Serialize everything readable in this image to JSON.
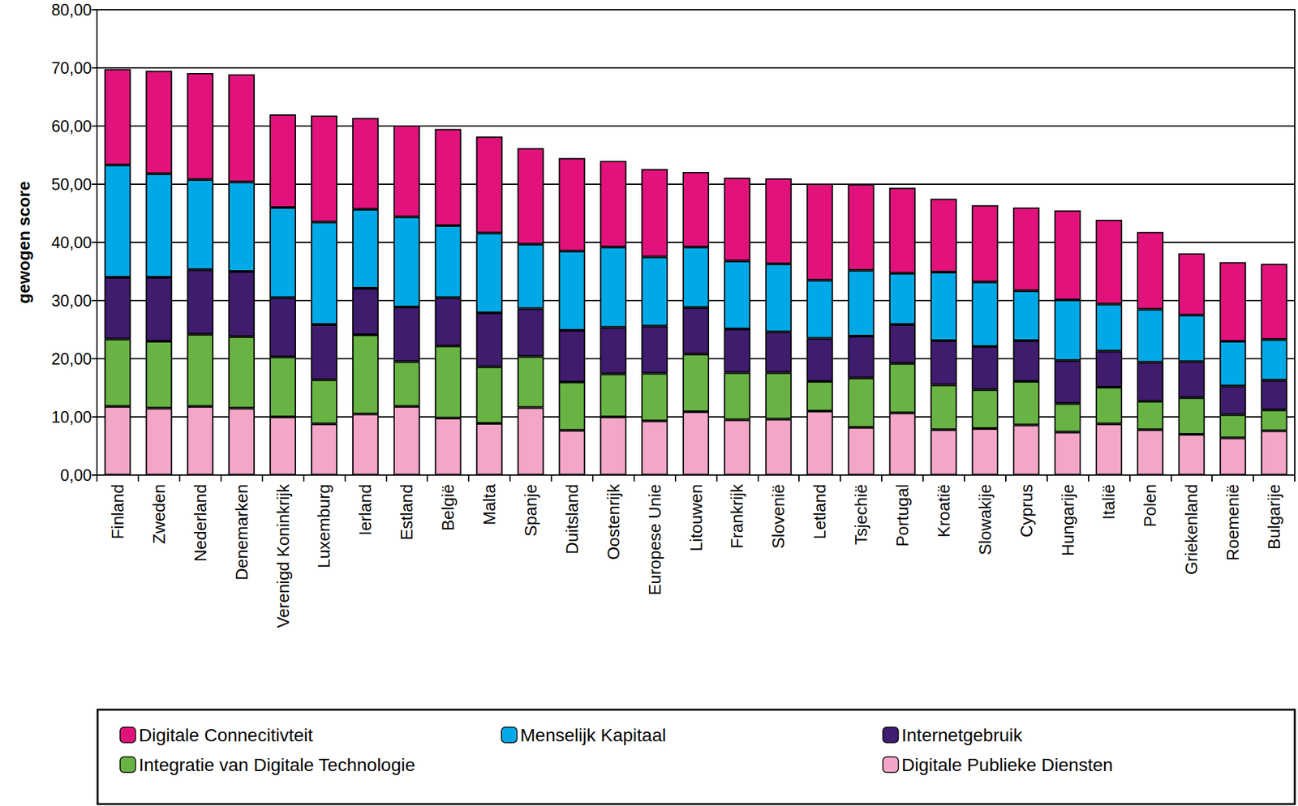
{
  "chart_data": {
    "type": "bar",
    "stacked": true,
    "y_label": "gewogen score",
    "categories": [
      "Finland",
      "Zweden",
      "Nederland",
      "Denemarken",
      "Verenigd Koninkrijk",
      "Luxemburg",
      "Ierland",
      "Estland",
      "België",
      "Malta",
      "Spanje",
      "Duitsland",
      "Oostenrijk",
      "Europese Unie",
      "Litouwen",
      "Frankrijk",
      "Slovenië",
      "Letland",
      "Tsjechië",
      "Portugal",
      "Kroatië",
      "Slowakije",
      "Cyprus",
      "Hungarije",
      "Italië",
      "Polen",
      "Griekenland",
      "Roemenië",
      "Bulgarije"
    ],
    "series": [
      {
        "name": "Digitale Publieke Diensten",
        "color": "#f4a6c8",
        "values": [
          11.8,
          11.5,
          11.8,
          11.5,
          10.0,
          8.8,
          10.5,
          11.8,
          9.8,
          8.9,
          11.6,
          7.7,
          10.0,
          9.3,
          10.9,
          9.5,
          9.6,
          11.0,
          8.2,
          10.7,
          7.8,
          8.0,
          8.6,
          7.4,
          8.8,
          7.8,
          7.0,
          6.4,
          7.6
        ]
      },
      {
        "name": "Integratie van Digitale Technologie",
        "color": "#69b344",
        "values": [
          11.6,
          11.5,
          12.4,
          12.3,
          10.3,
          7.6,
          13.6,
          7.7,
          12.4,
          9.7,
          8.8,
          8.3,
          7.4,
          8.2,
          9.9,
          8.1,
          8.0,
          5.1,
          8.5,
          8.5,
          7.7,
          6.7,
          7.5,
          4.9,
          6.3,
          4.9,
          6.3,
          4.0,
          3.6
        ]
      },
      {
        "name": "Internetgebruik",
        "color": "#3f1c6e",
        "values": [
          10.6,
          11.0,
          11.1,
          11.2,
          10.2,
          9.5,
          8.0,
          9.4,
          8.3,
          9.3,
          8.2,
          8.9,
          8.0,
          8.1,
          8.0,
          7.5,
          7.0,
          7.4,
          7.2,
          6.7,
          7.6,
          7.4,
          7.0,
          7.4,
          6.2,
          6.7,
          6.2,
          4.9,
          5.1
        ]
      },
      {
        "name": "Menselijk Kapitaal",
        "color": "#00a9e6",
        "values": [
          19.3,
          17.8,
          15.5,
          15.4,
          15.5,
          17.6,
          13.6,
          15.5,
          12.4,
          13.7,
          11.1,
          13.6,
          13.8,
          11.9,
          10.4,
          11.7,
          11.7,
          10.0,
          11.3,
          8.8,
          11.8,
          11.1,
          8.6,
          10.4,
          8.1,
          9.1,
          8.0,
          7.7,
          7.0
        ]
      },
      {
        "name": "Digitale Connecitivteit",
        "color": "#e2127c",
        "values": [
          16.5,
          17.7,
          18.3,
          18.5,
          16.0,
          18.3,
          15.7,
          15.7,
          16.6,
          16.6,
          16.5,
          16.0,
          14.8,
          15.1,
          12.9,
          14.3,
          14.7,
          16.6,
          14.8,
          14.7,
          12.6,
          13.2,
          14.3,
          15.4,
          14.5,
          13.3,
          10.6,
          13.6,
          13.0
        ]
      }
    ],
    "ylim": [
      0,
      80
    ],
    "yticks": [
      {
        "value": 0,
        "label": "0,00"
      },
      {
        "value": 10,
        "label": "10,00"
      },
      {
        "value": 20,
        "label": "20,00"
      },
      {
        "value": 30,
        "label": "30,00"
      },
      {
        "value": 40,
        "label": "40,00"
      },
      {
        "value": 50,
        "label": "50,00"
      },
      {
        "value": 60,
        "label": "60,00"
      },
      {
        "value": 70,
        "label": "70,00"
      },
      {
        "value": 80,
        "label": "80,00"
      }
    ],
    "grid": true,
    "legend": "bottom"
  }
}
